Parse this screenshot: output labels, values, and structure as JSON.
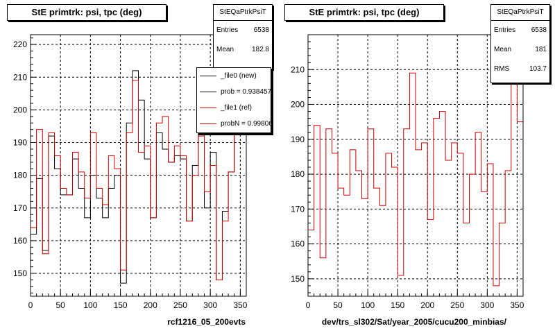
{
  "colors": {
    "file0": "#000000",
    "file1": "#cc0000"
  },
  "left": {
    "title": "StE primtrk: psi, tpc (deg)",
    "stats": {
      "name": "StEQaPtrkPsiT",
      "entries_label": "Entries",
      "entries": "6538",
      "mean_label": "Mean",
      "mean": "182.8"
    },
    "legend": [
      "_file0 (new)",
      "prob = 0.938457",
      "_file1 (ref)",
      "probN = 0.99806"
    ],
    "xtitle": "rcf1216_05_200evts"
  },
  "right": {
    "title": "StE primtrk: psi, tpc (deg)",
    "stats": {
      "name": "StEQaPtrkPsiT",
      "entries_label": "Entries",
      "entries": "6538",
      "mean_label": "Mean",
      "mean": "181",
      "rms_label": "RMS",
      "rms": "103.7"
    },
    "xtitle": "dev/trs_sl302/Sat/year_2005/cucu200_minbias/"
  },
  "chart_data": [
    {
      "type": "histogram",
      "title": "StE primtrk: psi, tpc (deg)",
      "xlabel": "rcf1216_05_200evts",
      "xlim": [
        0,
        360
      ],
      "ylim": [
        143,
        223
      ],
      "xticks": [
        0,
        50,
        100,
        150,
        200,
        250,
        300,
        350
      ],
      "yticks": [
        150,
        160,
        170,
        180,
        190,
        200,
        210,
        220
      ],
      "grid": true,
      "bin_edges": [
        0,
        10,
        20,
        30,
        40,
        50,
        60,
        70,
        80,
        90,
        100,
        110,
        120,
        130,
        140,
        150,
        160,
        170,
        180,
        190,
        200,
        210,
        220,
        230,
        240,
        250,
        260,
        270,
        280,
        290,
        300,
        310,
        320,
        330,
        340,
        350,
        360
      ],
      "series": [
        {
          "name": "_file0 (new)",
          "values": [
            162,
            179,
            157,
            192,
            182,
            174,
            174,
            185,
            176,
            167,
            180,
            173,
            167,
            176,
            180,
            147,
            196,
            212,
            203,
            185,
            167,
            193,
            188,
            184,
            186,
            185,
            166,
            183,
            194,
            170,
            187,
            148,
            169,
            181,
            199,
            196
          ]
        },
        {
          "name": "_file1 (ref)",
          "values": [
            164,
            194,
            156,
            193,
            186,
            176,
            174,
            187,
            181,
            173,
            193,
            176,
            171,
            186,
            182,
            151,
            193,
            209,
            187,
            189,
            167,
            196,
            198,
            184,
            189,
            186,
            166,
            180,
            192,
            175,
            183,
            148,
            166,
            181,
            210,
            195
          ]
        }
      ]
    },
    {
      "type": "histogram",
      "title": "StE primtrk: psi, tpc (deg)",
      "xlabel": "dev/trs_sl302/Sat/year_2005/cucu200_minbias/",
      "xlim": [
        0,
        360
      ],
      "ylim": [
        145,
        220
      ],
      "xticks": [
        0,
        50,
        100,
        150,
        200,
        250,
        300,
        350
      ],
      "yticks": [
        150,
        160,
        170,
        180,
        190,
        200,
        210
      ],
      "grid": true,
      "bin_edges": [
        0,
        10,
        20,
        30,
        40,
        50,
        60,
        70,
        80,
        90,
        100,
        110,
        120,
        130,
        140,
        150,
        160,
        170,
        180,
        190,
        200,
        210,
        220,
        230,
        240,
        250,
        260,
        270,
        280,
        290,
        300,
        310,
        320,
        330,
        340,
        350,
        360
      ],
      "series": [
        {
          "name": "_file1 (ref)",
          "values": [
            164,
            194,
            156,
            193,
            186,
            176,
            174,
            187,
            181,
            173,
            193,
            176,
            171,
            186,
            182,
            151,
            193,
            209,
            187,
            189,
            167,
            196,
            198,
            184,
            189,
            186,
            166,
            180,
            192,
            175,
            183,
            148,
            166,
            181,
            210,
            195
          ]
        }
      ]
    }
  ]
}
